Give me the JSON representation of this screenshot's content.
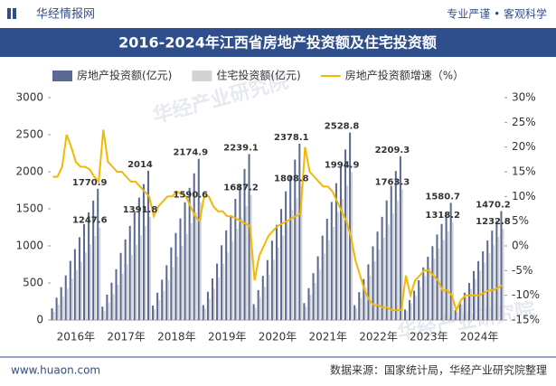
{
  "header": {
    "brand": "华经情报网",
    "slogan": "专业严谨 • 客观科学"
  },
  "footer": {
    "site": "www.huaon.com",
    "source": "数据来源：国家统计局，华经产业研究院整理"
  },
  "watermark": "华经产业研究院",
  "chart_data": {
    "type": "bar-line",
    "title": "2016-2024年江西省房地产投资额及住宅投资额",
    "categories": [
      null,
      null,
      null,
      null,
      null,
      "2016年",
      null,
      null,
      null,
      null,
      null,
      null,
      null,
      null,
      null,
      null,
      "2017年",
      null,
      null,
      null,
      null,
      null,
      null,
      null,
      null,
      null,
      null,
      "2018年",
      null,
      null,
      null,
      null,
      null,
      null,
      null,
      null,
      null,
      null,
      "2019年",
      null,
      null,
      null,
      null,
      null,
      null,
      null,
      null,
      null,
      null,
      "2020年",
      null,
      null,
      null,
      null,
      null,
      null,
      null,
      null,
      null,
      null,
      "2021年",
      null,
      null,
      null,
      null,
      null,
      null,
      null,
      null,
      null,
      null,
      "2022年",
      null,
      null,
      null,
      null,
      null,
      null,
      null,
      null,
      null,
      null,
      "2023年",
      null,
      null,
      null,
      null,
      null,
      null,
      null,
      null,
      null,
      null,
      "2024年",
      null,
      null,
      null,
      null,
      null
    ],
    "series": [
      {
        "name": "房地产投资额(亿元)",
        "color": "#5b6a94",
        "type": "bar",
        "values": [
          159,
          301,
          443,
          602,
          797,
          956,
          1116,
          1293,
          1452,
          1611,
          1770.9,
          181,
          342,
          504,
          685,
          906,
          1088,
          1269,
          1470,
          1651,
          1833,
          2014,
          196,
          370,
          544,
          739,
          979,
          1174,
          1370,
          1588,
          1783,
          1979,
          2174.9,
          202,
          381,
          560,
          761,
          1008,
          1209,
          1411,
          1635,
          1836,
          2038,
          2239.1,
          214,
          404,
          595,
          809,
          1070,
          1284,
          1498,
          1736,
          1950,
          2164,
          2378.1,
          228,
          430,
          632,
          860,
          1138,
          1366,
          1593,
          1846,
          2074,
          2301,
          2528.8,
          199,
          376,
          552,
          751,
          994,
          1193,
          1392,
          1613,
          1812,
          2010,
          2209.3,
          142,
          269,
          395,
          537,
          711,
          854,
          996,
          1154,
          1296,
          1438,
          1580.7,
          132,
          250,
          368,
          500,
          662,
          794,
          926,
          1073,
          1206,
          1338,
          1470.2
        ],
        "value_labels": [
          null,
          null,
          null,
          null,
          null,
          null,
          null,
          null,
          null,
          null,
          "1770.9",
          null,
          null,
          null,
          null,
          null,
          null,
          null,
          null,
          null,
          null,
          "2014",
          null,
          null,
          null,
          null,
          null,
          null,
          null,
          null,
          null,
          null,
          "2174.9",
          null,
          null,
          null,
          null,
          null,
          null,
          null,
          null,
          null,
          null,
          "2239.1",
          null,
          null,
          null,
          null,
          null,
          null,
          null,
          null,
          null,
          null,
          "2378.1",
          null,
          null,
          null,
          null,
          null,
          null,
          null,
          null,
          null,
          null,
          "2528.8",
          null,
          null,
          null,
          null,
          null,
          null,
          null,
          null,
          null,
          null,
          "2209.3",
          null,
          null,
          null,
          null,
          null,
          null,
          null,
          null,
          null,
          null,
          "1580.7",
          null,
          null,
          null,
          null,
          null,
          null,
          null,
          null,
          null,
          null,
          "1470.2"
        ]
      },
      {
        "name": "住宅投资额(亿元)",
        "color": "#d3d3d3",
        "type": "bar",
        "values": [
          112,
          212,
          312,
          424,
          561,
          674,
          786,
          911,
          1023,
          1135,
          1247.6,
          125,
          237,
          348,
          473,
          626,
          752,
          877,
          1016,
          1141,
          1267,
          1391.8,
          143,
          270,
          398,
          541,
          716,
          859,
          1002,
          1161,
          1304,
          1447,
          1590.6,
          152,
          287,
          422,
          574,
          759,
          911,
          1063,
          1232,
          1383,
          1535,
          1687.2,
          163,
          307,
          452,
          615,
          814,
          977,
          1140,
          1320,
          1483,
          1646,
          1808.8,
          180,
          339,
          499,
          678,
          898,
          1077,
          1257,
          1456,
          1636,
          1815,
          1994.9,
          159,
          300,
          441,
          600,
          793,
          952,
          1111,
          1287,
          1446,
          1605,
          1763.3,
          119,
          224,
          330,
          448,
          593,
          712,
          830,
          962,
          1081,
          1200,
          1318.2,
          111,
          210,
          308,
          419,
          555,
          666,
          777,
          900,
          1011,
          1122,
          1232.8
        ],
        "value_labels": [
          null,
          null,
          null,
          null,
          null,
          null,
          null,
          null,
          null,
          null,
          "1247.6",
          null,
          null,
          null,
          null,
          null,
          null,
          null,
          null,
          null,
          null,
          "1391.8",
          null,
          null,
          null,
          null,
          null,
          null,
          null,
          null,
          null,
          null,
          "1590.6",
          null,
          null,
          null,
          null,
          null,
          null,
          null,
          null,
          null,
          null,
          "1687.2",
          null,
          null,
          null,
          null,
          null,
          null,
          null,
          null,
          null,
          null,
          "1808.8",
          null,
          null,
          null,
          null,
          null,
          null,
          null,
          null,
          null,
          null,
          "1994.9",
          null,
          null,
          null,
          null,
          null,
          null,
          null,
          null,
          null,
          null,
          "1763.3",
          null,
          null,
          null,
          null,
          null,
          null,
          null,
          null,
          null,
          null,
          "1318.2",
          null,
          null,
          null,
          null,
          null,
          null,
          null,
          null,
          null,
          null,
          "1232.8"
        ]
      },
      {
        "name": "房地产投资额增速（%）",
        "color": "#f5b800",
        "type": "line",
        "axis": "y2",
        "values": [
          14,
          14,
          16,
          22.5,
          20,
          17,
          16,
          16,
          15.5,
          14,
          13,
          23.5,
          17,
          16,
          15,
          15,
          14,
          13,
          13,
          12,
          11,
          10,
          6,
          8,
          9,
          10,
          10,
          11,
          10.5,
          10,
          8,
          6,
          5,
          10,
          10,
          8,
          7,
          7,
          6,
          6,
          5.5,
          5,
          4.5,
          4,
          -7,
          -2,
          0,
          2,
          3,
          4,
          4.5,
          5,
          5.5,
          6,
          6.5,
          20,
          15,
          14,
          13,
          12,
          12,
          11,
          9,
          7,
          5,
          2,
          -3,
          -6,
          -9,
          -11,
          -12,
          -12,
          -12.5,
          -12.5,
          -13,
          -13,
          -13,
          -6,
          -10,
          -7,
          -6,
          -5,
          -5,
          -6,
          -7,
          -9,
          -9,
          -10,
          -13,
          -11,
          -10,
          -10,
          -10,
          -10,
          -9.5,
          -9,
          -9,
          -8.5,
          -8
        ]
      }
    ],
    "ylim": [
      0,
      3000
    ],
    "yticks": [
      0,
      500,
      1000,
      1500,
      2000,
      2500,
      3000
    ],
    "y2lim": [
      -15,
      30
    ],
    "y2ticks": [
      {
        "value": -15,
        "label": "-15%"
      },
      {
        "value": -10,
        "label": "-10%"
      },
      {
        "value": -5,
        "label": "-5%"
      },
      {
        "value": 0,
        "label": "0%"
      },
      {
        "value": 5,
        "label": "5%"
      },
      {
        "value": 10,
        "label": "10%"
      },
      {
        "value": 15,
        "label": "15%"
      },
      {
        "value": 20,
        "label": "20%"
      },
      {
        "value": 25,
        "label": "25%"
      },
      {
        "value": 30,
        "label": "30%"
      }
    ],
    "grid": false
  }
}
